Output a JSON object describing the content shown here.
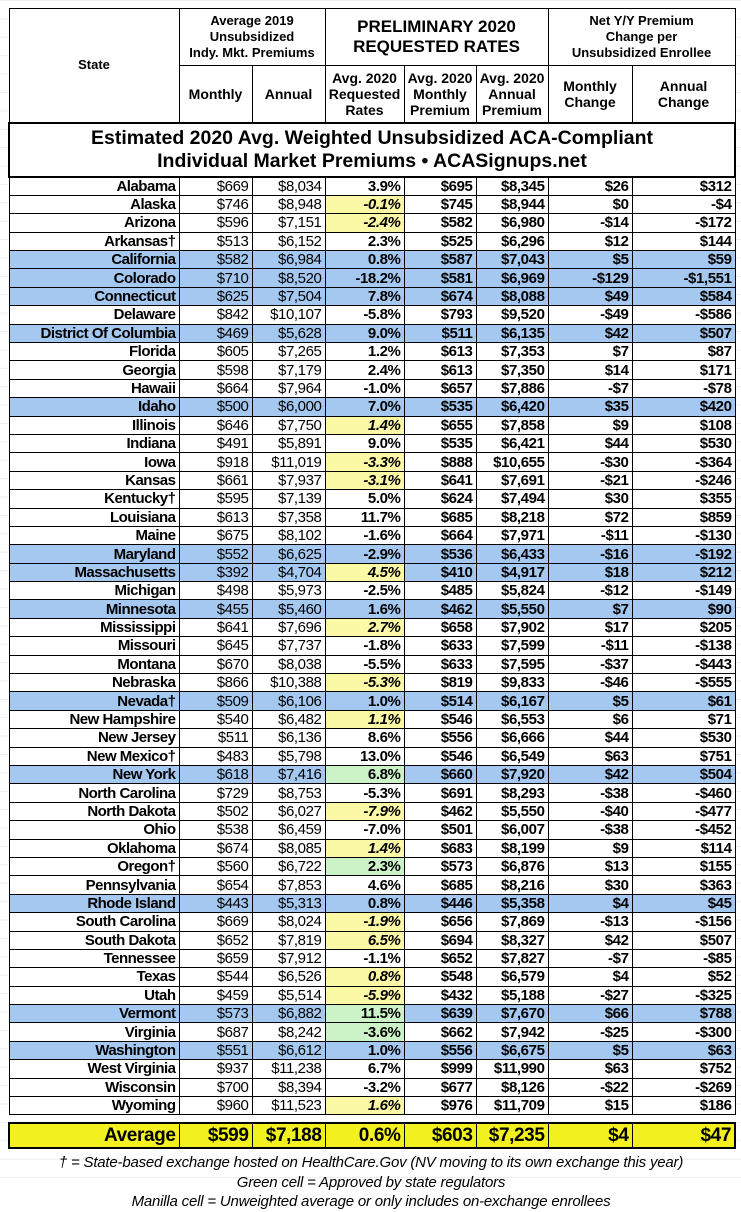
{
  "title_line1": "Estimated 2020 Avg. Weighted Unsubsidized ACA-Compliant",
  "title_line2": "Individual Market Premiums • ACASignups.net",
  "headers": {
    "state": "State",
    "group2019": [
      "Average 2019",
      "Unsubsidized",
      "Indy. Mkt. Premiums"
    ],
    "group2020": [
      "PRELIMINARY 2020",
      "REQUESTED RATES"
    ],
    "groupNet": [
      "Net Y/Y Premium",
      "Change per",
      "Unsubsidized Enrollee"
    ],
    "monthly": "Monthly",
    "annual": "Annual",
    "rate": [
      "Avg. 2020",
      "Requested",
      "Rates"
    ],
    "mprem": [
      "Avg. 2020",
      "Monthly",
      "Premium"
    ],
    "aprem": [
      "Avg. 2020",
      "Annual",
      "Premium"
    ],
    "mchg": [
      "Monthly",
      "Change"
    ],
    "achg": [
      "Annual",
      "Change"
    ]
  },
  "colors": {
    "blue_row": "#a4c8f0",
    "yellow_cell": "#fbf8a6",
    "green_cell": "#ccf2c8",
    "average_row": "#f3f020"
  },
  "rows": [
    [
      "Alabama",
      "$669",
      "$8,034",
      "3.9%",
      "$695",
      "$8,345",
      "$26",
      "$312",
      "",
      ""
    ],
    [
      "Alaska",
      "$746",
      "$8,948",
      "-0.1%",
      "$745",
      "$8,944",
      "$0",
      "-$4",
      "",
      "yellow"
    ],
    [
      "Arizona",
      "$596",
      "$7,151",
      "-2.4%",
      "$582",
      "$6,980",
      "-$14",
      "-$172",
      "",
      "yellow"
    ],
    [
      "Arkansas†",
      "$513",
      "$6,152",
      "2.3%",
      "$525",
      "$6,296",
      "$12",
      "$144",
      "",
      ""
    ],
    [
      "California",
      "$582",
      "$6,984",
      "0.8%",
      "$587",
      "$7,043",
      "$5",
      "$59",
      "blue",
      ""
    ],
    [
      "Colorado",
      "$710",
      "$8,520",
      "-18.2%",
      "$581",
      "$6,969",
      "-$129",
      "-$1,551",
      "blue",
      ""
    ],
    [
      "Connecticut",
      "$625",
      "$7,504",
      "7.8%",
      "$674",
      "$8,088",
      "$49",
      "$584",
      "blue",
      ""
    ],
    [
      "Delaware",
      "$842",
      "$10,107",
      "-5.8%",
      "$793",
      "$9,520",
      "-$49",
      "-$586",
      "",
      ""
    ],
    [
      "District Of Columbia",
      "$469",
      "$5,628",
      "9.0%",
      "$511",
      "$6,135",
      "$42",
      "$507",
      "blue",
      ""
    ],
    [
      "Florida",
      "$605",
      "$7,265",
      "1.2%",
      "$613",
      "$7,353",
      "$7",
      "$87",
      "",
      ""
    ],
    [
      "Georgia",
      "$598",
      "$7,179",
      "2.4%",
      "$613",
      "$7,350",
      "$14",
      "$171",
      "",
      ""
    ],
    [
      "Hawaii",
      "$664",
      "$7,964",
      "-1.0%",
      "$657",
      "$7,886",
      "-$7",
      "-$78",
      "",
      ""
    ],
    [
      "Idaho",
      "$500",
      "$6,000",
      "7.0%",
      "$535",
      "$6,420",
      "$35",
      "$420",
      "blue",
      ""
    ],
    [
      "Illinois",
      "$646",
      "$7,750",
      "1.4%",
      "$655",
      "$7,858",
      "$9",
      "$108",
      "",
      "yellow"
    ],
    [
      "Indiana",
      "$491",
      "$5,891",
      "9.0%",
      "$535",
      "$6,421",
      "$44",
      "$530",
      "",
      ""
    ],
    [
      "Iowa",
      "$918",
      "$11,019",
      "-3.3%",
      "$888",
      "$10,655",
      "-$30",
      "-$364",
      "",
      "yellow"
    ],
    [
      "Kansas",
      "$661",
      "$7,937",
      "-3.1%",
      "$641",
      "$7,691",
      "-$21",
      "-$246",
      "",
      "yellow"
    ],
    [
      "Kentucky†",
      "$595",
      "$7,139",
      "5.0%",
      "$624",
      "$7,494",
      "$30",
      "$355",
      "",
      ""
    ],
    [
      "Louisiana",
      "$613",
      "$7,358",
      "11.7%",
      "$685",
      "$8,218",
      "$72",
      "$859",
      "",
      ""
    ],
    [
      "Maine",
      "$675",
      "$8,102",
      "-1.6%",
      "$664",
      "$7,971",
      "-$11",
      "-$130",
      "",
      ""
    ],
    [
      "Maryland",
      "$552",
      "$6,625",
      "-2.9%",
      "$536",
      "$6,433",
      "-$16",
      "-$192",
      "blue",
      ""
    ],
    [
      "Massachusetts",
      "$392",
      "$4,704",
      "4.5%",
      "$410",
      "$4,917",
      "$18",
      "$212",
      "blue",
      "yellow"
    ],
    [
      "Michigan",
      "$498",
      "$5,973",
      "-2.5%",
      "$485",
      "$5,824",
      "-$12",
      "-$149",
      "",
      ""
    ],
    [
      "Minnesota",
      "$455",
      "$5,460",
      "1.6%",
      "$462",
      "$5,550",
      "$7",
      "$90",
      "blue",
      ""
    ],
    [
      "Mississippi",
      "$641",
      "$7,696",
      "2.7%",
      "$658",
      "$7,902",
      "$17",
      "$205",
      "",
      "yellow"
    ],
    [
      "Missouri",
      "$645",
      "$7,737",
      "-1.8%",
      "$633",
      "$7,599",
      "-$11",
      "-$138",
      "",
      ""
    ],
    [
      "Montana",
      "$670",
      "$8,038",
      "-5.5%",
      "$633",
      "$7,595",
      "-$37",
      "-$443",
      "",
      ""
    ],
    [
      "Nebraska",
      "$866",
      "$10,388",
      "-5.3%",
      "$819",
      "$9,833",
      "-$46",
      "-$555",
      "",
      "yellow"
    ],
    [
      "Nevada†",
      "$509",
      "$6,106",
      "1.0%",
      "$514",
      "$6,167",
      "$5",
      "$61",
      "blue",
      ""
    ],
    [
      "New Hampshire",
      "$540",
      "$6,482",
      "1.1%",
      "$546",
      "$6,553",
      "$6",
      "$71",
      "",
      "yellow"
    ],
    [
      "New Jersey",
      "$511",
      "$6,136",
      "8.6%",
      "$556",
      "$6,666",
      "$44",
      "$530",
      "",
      ""
    ],
    [
      "New Mexico†",
      "$483",
      "$5,798",
      "13.0%",
      "$546",
      "$6,549",
      "$63",
      "$751",
      "",
      ""
    ],
    [
      "New York",
      "$618",
      "$7,416",
      "6.8%",
      "$660",
      "$7,920",
      "$42",
      "$504",
      "blue",
      "green"
    ],
    [
      "North Carolina",
      "$729",
      "$8,753",
      "-5.3%",
      "$691",
      "$8,293",
      "-$38",
      "-$460",
      "",
      ""
    ],
    [
      "North Dakota",
      "$502",
      "$6,027",
      "-7.9%",
      "$462",
      "$5,550",
      "-$40",
      "-$477",
      "",
      "yellow"
    ],
    [
      "Ohio",
      "$538",
      "$6,459",
      "-7.0%",
      "$501",
      "$6,007",
      "-$38",
      "-$452",
      "",
      ""
    ],
    [
      "Oklahoma",
      "$674",
      "$8,085",
      "1.4%",
      "$683",
      "$8,199",
      "$9",
      "$114",
      "",
      "yellow"
    ],
    [
      "Oregon†",
      "$560",
      "$6,722",
      "2.3%",
      "$573",
      "$6,876",
      "$13",
      "$155",
      "",
      "green"
    ],
    [
      "Pennsylvania",
      "$654",
      "$7,853",
      "4.6%",
      "$685",
      "$8,216",
      "$30",
      "$363",
      "",
      ""
    ],
    [
      "Rhode Island",
      "$443",
      "$5,313",
      "0.8%",
      "$446",
      "$5,358",
      "$4",
      "$45",
      "blue",
      ""
    ],
    [
      "South Carolina",
      "$669",
      "$8,024",
      "-1.9%",
      "$656",
      "$7,869",
      "-$13",
      "-$156",
      "",
      "yellow"
    ],
    [
      "South Dakota",
      "$652",
      "$7,819",
      "6.5%",
      "$694",
      "$8,327",
      "$42",
      "$507",
      "",
      "yellow"
    ],
    [
      "Tennessee",
      "$659",
      "$7,912",
      "-1.1%",
      "$652",
      "$7,827",
      "-$7",
      "-$85",
      "",
      ""
    ],
    [
      "Texas",
      "$544",
      "$6,526",
      "0.8%",
      "$548",
      "$6,579",
      "$4",
      "$52",
      "",
      "yellow"
    ],
    [
      "Utah",
      "$459",
      "$5,514",
      "-5.9%",
      "$432",
      "$5,188",
      "-$27",
      "-$325",
      "",
      "yellow"
    ],
    [
      "Vermont",
      "$573",
      "$6,882",
      "11.5%",
      "$639",
      "$7,670",
      "$66",
      "$788",
      "blue",
      "green"
    ],
    [
      "Virginia",
      "$687",
      "$8,242",
      "-3.6%",
      "$662",
      "$7,942",
      "-$25",
      "-$300",
      "",
      "green"
    ],
    [
      "Washington",
      "$551",
      "$6,612",
      "1.0%",
      "$556",
      "$6,675",
      "$5",
      "$63",
      "blue",
      ""
    ],
    [
      "West Virginia",
      "$937",
      "$11,238",
      "6.7%",
      "$999",
      "$11,990",
      "$63",
      "$752",
      "",
      ""
    ],
    [
      "Wisconsin",
      "$700",
      "$8,394",
      "-3.2%",
      "$677",
      "$8,126",
      "-$22",
      "-$269",
      "",
      ""
    ],
    [
      "Wyoming",
      "$960",
      "$11,523",
      "1.6%",
      "$976",
      "$11,709",
      "$15",
      "$186",
      "",
      "yellow"
    ]
  ],
  "average": [
    "Average",
    "$599",
    "$7,188",
    "0.6%",
    "$603",
    "$7,235",
    "$4",
    "$47"
  ],
  "notes": [
    "† = State-based exchange hosted on HealthCare.Gov (NV moving to its own exchange this year)",
    "Green cell = Approved by state regulators",
    "Manilla cell = Unweighted average or only includes on-exchange enrollees"
  ]
}
